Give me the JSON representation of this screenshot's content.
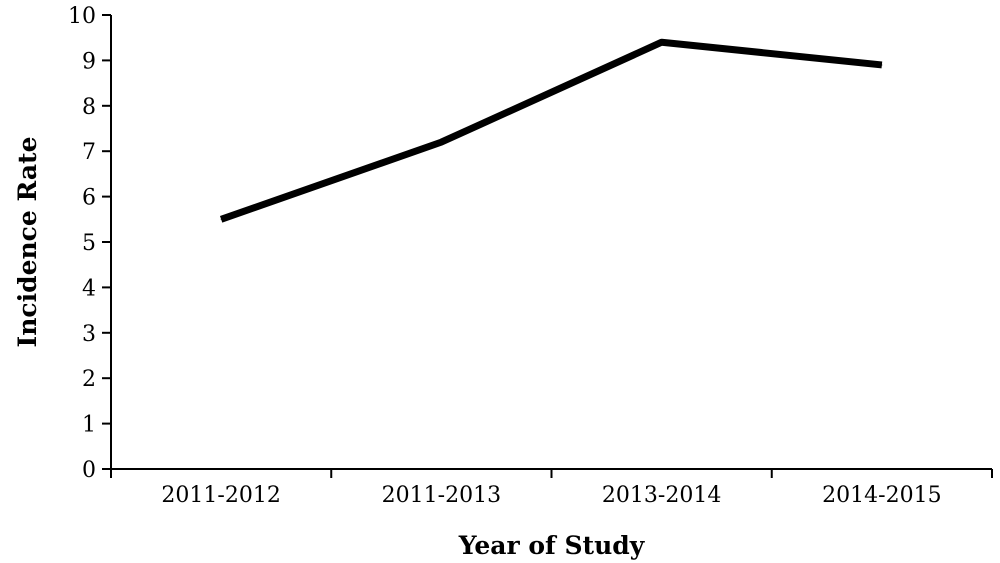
{
  "chart_data": {
    "type": "line",
    "title": "",
    "xlabel": "Year of Study",
    "ylabel": "Incidence Rate",
    "categories": [
      "2011-2012",
      "2011-2013",
      "2013-2014",
      "2014-2015"
    ],
    "series": [
      {
        "values": [
          5.5,
          7.2,
          9.4,
          8.9
        ]
      }
    ],
    "ylim": [
      0,
      10
    ],
    "yticks": [
      "0",
      "1",
      "2",
      "3",
      "4",
      "5",
      "6",
      "7",
      "8",
      "9",
      "10"
    ],
    "grid": false,
    "legend": "none",
    "line_color": "#000000"
  }
}
